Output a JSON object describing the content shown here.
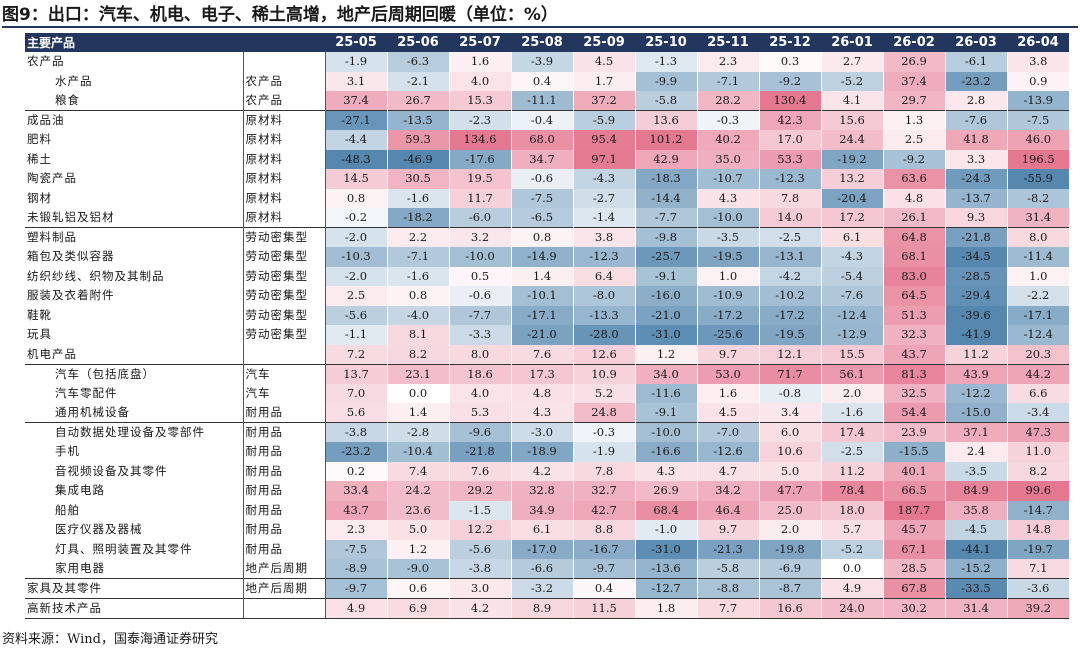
{
  "title": "图9：出口：汽车、机电、电子、稀土高增，地产后周期回暖（单位：%）",
  "source": "资料来源：Wind，国泰海通证券研究",
  "table": {
    "header_name": "主要产品",
    "columns": [
      "25-05",
      "25-06",
      "25-07",
      "25-08",
      "25-09",
      "25-10",
      "25-11",
      "25-12",
      "26-01",
      "26-02",
      "26-03",
      "26-04"
    ],
    "rows": [
      {
        "name": "农产品",
        "category": "",
        "indent": false,
        "group_start": false,
        "values": [
          "-1.9",
          "-6.3",
          "1.6",
          "-3.9",
          "4.5",
          "-1.3",
          "2.3",
          "0.3",
          "2.7",
          "26.9",
          "-6.1",
          "3.8"
        ]
      },
      {
        "name": "水产品",
        "category": "农产品",
        "indent": true,
        "group_start": false,
        "values": [
          "3.1",
          "-2.1",
          "4.0",
          "0.4",
          "1.7",
          "-9.9",
          "-7.1",
          "-9.2",
          "-5.2",
          "37.4",
          "-23.2",
          "0.9"
        ]
      },
      {
        "name": "粮食",
        "category": "农产品",
        "indent": true,
        "group_start": false,
        "values": [
          "37.4",
          "26.7",
          "15.3",
          "-11.1",
          "37.2",
          "-5.8",
          "28.2",
          "130.4",
          "4.1",
          "29.7",
          "2.8",
          "-13.9"
        ]
      },
      {
        "name": "成品油",
        "category": "原材料",
        "indent": false,
        "group_start": true,
        "values": [
          "-27.1",
          "-13.5",
          "-2.3",
          "-0.4",
          "-5.9",
          "13.6",
          "-0.3",
          "42.3",
          "15.6",
          "1.3",
          "-7.6",
          "-7.5"
        ]
      },
      {
        "name": "肥料",
        "category": "原材料",
        "indent": false,
        "group_start": false,
        "values": [
          "-4.4",
          "59.3",
          "134.6",
          "68.0",
          "95.4",
          "101.2",
          "40.2",
          "17.0",
          "24.4",
          "2.5",
          "41.8",
          "46.0"
        ]
      },
      {
        "name": "稀土",
        "category": "原材料",
        "indent": false,
        "group_start": false,
        "values": [
          "-48.3",
          "-46.9",
          "-17.6",
          "34.7",
          "97.1",
          "42.9",
          "35.0",
          "53.3",
          "-19.2",
          "-9.2",
          "3.3",
          "196.5"
        ]
      },
      {
        "name": "陶瓷产品",
        "category": "原材料",
        "indent": false,
        "group_start": false,
        "values": [
          "14.5",
          "30.5",
          "19.5",
          "-0.6",
          "-4.3",
          "-18.3",
          "-10.7",
          "-12.3",
          "13.2",
          "63.6",
          "-24.3",
          "-55.9"
        ]
      },
      {
        "name": "钢材",
        "category": "原材料",
        "indent": false,
        "group_start": false,
        "values": [
          "0.8",
          "-1.6",
          "11.7",
          "-7.5",
          "-2.7",
          "-14.4",
          "4.3",
          "7.8",
          "-20.4",
          "4.8",
          "-13.7",
          "-8.2"
        ]
      },
      {
        "name": "未锻轧铝及铝材",
        "category": "原材料",
        "indent": false,
        "group_start": false,
        "values": [
          "-0.2",
          "-18.2",
          "-6.0",
          "-6.5",
          "-1.4",
          "-7.7",
          "-10.0",
          "14.0",
          "17.2",
          "26.1",
          "9.3",
          "31.4"
        ]
      },
      {
        "name": "塑料制品",
        "category": "劳动密集型",
        "indent": false,
        "group_start": true,
        "values": [
          "-2.0",
          "2.2",
          "3.2",
          "0.8",
          "3.8",
          "-9.8",
          "-3.5",
          "-2.5",
          "6.1",
          "64.8",
          "-21.8",
          "8.0"
        ]
      },
      {
        "name": "箱包及类似容器",
        "category": "劳动密集型",
        "indent": false,
        "group_start": false,
        "values": [
          "-10.3",
          "-7.1",
          "-10.0",
          "-14.9",
          "-12.3",
          "-25.7",
          "-19.5",
          "-13.1",
          "-4.3",
          "68.1",
          "-34.5",
          "-11.4"
        ]
      },
      {
        "name": "纺织纱线、织物及其制品",
        "category": "劳动密集型",
        "indent": false,
        "group_start": false,
        "values": [
          "-2.0",
          "-1.6",
          "0.5",
          "1.4",
          "6.4",
          "-9.1",
          "1.0",
          "-4.2",
          "-5.4",
          "83.0",
          "-28.5",
          "1.0"
        ]
      },
      {
        "name": "服装及衣着附件",
        "category": "劳动密集型",
        "indent": false,
        "group_start": false,
        "values": [
          "2.5",
          "0.8",
          "-0.6",
          "-10.1",
          "-8.0",
          "-16.0",
          "-10.9",
          "-10.2",
          "-7.6",
          "64.5",
          "-29.4",
          "-2.2"
        ]
      },
      {
        "name": "鞋靴",
        "category": "劳动密集型",
        "indent": false,
        "group_start": false,
        "values": [
          "-5.6",
          "-4.0",
          "-7.7",
          "-17.1",
          "-13.3",
          "-21.0",
          "-17.2",
          "-17.2",
          "-12.4",
          "51.3",
          "-39.6",
          "-17.1"
        ]
      },
      {
        "name": "玩具",
        "category": "劳动密集型",
        "indent": false,
        "group_start": false,
        "values": [
          "-1.1",
          "8.1",
          "-3.3",
          "-21.0",
          "-28.0",
          "-31.0",
          "-25.6",
          "-19.5",
          "-12.9",
          "32.3",
          "-41.9",
          "-12.4"
        ]
      },
      {
        "name": "机电产品",
        "category": "",
        "indent": false,
        "group_start": false,
        "values": [
          "7.2",
          "8.2",
          "8.0",
          "7.6",
          "12.6",
          "1.2",
          "9.7",
          "12.1",
          "15.5",
          "43.7",
          "11.2",
          "20.3"
        ]
      },
      {
        "name": "汽车（包括底盘）",
        "category": "汽车",
        "indent": true,
        "group_start": true,
        "values": [
          "13.7",
          "23.1",
          "18.6",
          "17.3",
          "10.9",
          "34.0",
          "53.0",
          "71.7",
          "56.1",
          "81.3",
          "43.9",
          "44.2"
        ]
      },
      {
        "name": "汽车零配件",
        "category": "汽车",
        "indent": true,
        "group_start": false,
        "values": [
          "7.0",
          "0.0",
          "4.0",
          "4.8",
          "5.2",
          "-11.6",
          "1.6",
          "-0.8",
          "2.0",
          "32.5",
          "-12.2",
          "6.6"
        ]
      },
      {
        "name": "通用机械设备",
        "category": "耐用品",
        "indent": true,
        "group_start": false,
        "values": [
          "5.6",
          "1.4",
          "5.3",
          "4.3",
          "24.8",
          "-9.1",
          "4.5",
          "3.4",
          "-1.6",
          "54.4",
          "-15.0",
          "-3.4"
        ]
      },
      {
        "name": "自动数据处理设备及零部件",
        "category": "耐用品",
        "indent": true,
        "group_start": true,
        "values": [
          "-3.8",
          "-2.8",
          "-9.6",
          "-3.0",
          "-0.3",
          "-10.0",
          "-7.0",
          "6.0",
          "17.4",
          "23.9",
          "37.1",
          "47.3"
        ]
      },
      {
        "name": "手机",
        "category": "耐用品",
        "indent": true,
        "group_start": false,
        "values": [
          "-23.2",
          "-10.4",
          "-21.8",
          "-18.9",
          "-1.9",
          "-16.6",
          "-12.6",
          "10.6",
          "-2.5",
          "-15.5",
          "2.4",
          "11.0"
        ]
      },
      {
        "name": "音视频设备及其零件",
        "category": "耐用品",
        "indent": true,
        "group_start": false,
        "values": [
          "0.2",
          "7.4",
          "7.6",
          "4.2",
          "7.8",
          "4.3",
          "4.7",
          "5.0",
          "11.2",
          "40.1",
          "-3.5",
          "8.2"
        ]
      },
      {
        "name": "集成电路",
        "category": "耐用品",
        "indent": true,
        "group_start": false,
        "values": [
          "33.4",
          "24.2",
          "29.2",
          "32.8",
          "32.7",
          "26.9",
          "34.2",
          "47.7",
          "78.4",
          "66.5",
          "84.9",
          "99.6"
        ]
      },
      {
        "name": "船舶",
        "category": "耐用品",
        "indent": true,
        "group_start": false,
        "values": [
          "43.7",
          "23.6",
          "-1.5",
          "34.9",
          "42.7",
          "68.4",
          "46.4",
          "25.0",
          "18.0",
          "187.7",
          "35.8",
          "-14.7"
        ]
      },
      {
        "name": "医疗仪器及器械",
        "category": "耐用品",
        "indent": true,
        "group_start": false,
        "values": [
          "2.3",
          "5.0",
          "12.2",
          "6.1",
          "8.8",
          "-1.0",
          "9.7",
          "2.0",
          "5.7",
          "45.7",
          "-4.5",
          "14.8"
        ]
      },
      {
        "name": "灯具、照明装置及其零件",
        "category": "耐用品",
        "indent": true,
        "group_start": false,
        "values": [
          "-7.5",
          "1.2",
          "-5.6",
          "-17.0",
          "-16.7",
          "-31.0",
          "-21.3",
          "-19.8",
          "-5.2",
          "67.1",
          "-44.1",
          "-19.7"
        ]
      },
      {
        "name": "家用电器",
        "category": "地产后周期",
        "indent": true,
        "group_start": false,
        "values": [
          "-8.9",
          "-9.0",
          "-3.8",
          "-6.6",
          "-9.7",
          "-13.6",
          "-5.8",
          "-6.9",
          "0.0",
          "28.5",
          "-15.2",
          "7.1"
        ]
      },
      {
        "name": "家具及其零件",
        "category": "地产后周期",
        "indent": false,
        "group_start": true,
        "values": [
          "-9.7",
          "0.6",
          "3.0",
          "-3.2",
          "0.4",
          "-12.7",
          "-8.8",
          "-8.7",
          "4.9",
          "67.8",
          "-33.5",
          "-3.6"
        ]
      },
      {
        "name": "高新技术产品",
        "category": "",
        "indent": false,
        "group_start": true,
        "values": [
          "4.9",
          "6.9",
          "4.2",
          "8.9",
          "11.5",
          "1.8",
          "7.7",
          "16.6",
          "24.0",
          "30.2",
          "31.4",
          "39.2"
        ]
      }
    ]
  }
}
